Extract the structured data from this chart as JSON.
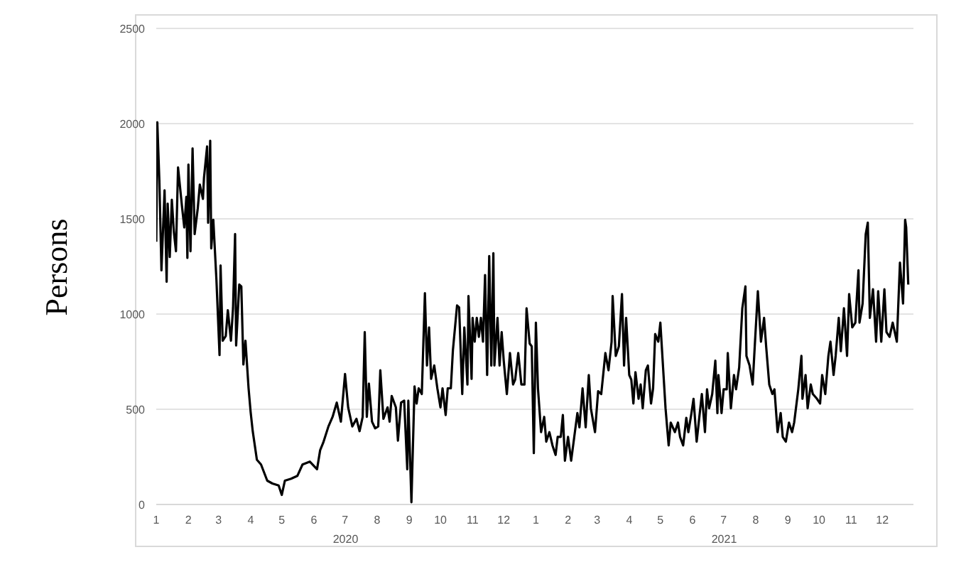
{
  "chart_data": {
    "type": "line",
    "ylabel": "Persons",
    "xlim": [
      "2020-01-01",
      "2021-12-31"
    ],
    "ylim": [
      0,
      2500
    ],
    "yticks": [
      0,
      500,
      1000,
      1500,
      2000,
      2500
    ],
    "xticks": [
      {
        "value": "2020-01-01",
        "label": "1"
      },
      {
        "value": "2020-02-01",
        "label": "2"
      },
      {
        "value": "2020-03-01",
        "label": "3"
      },
      {
        "value": "2020-04-01",
        "label": "4"
      },
      {
        "value": "2020-05-01",
        "label": "5"
      },
      {
        "value": "2020-06-01",
        "label": "6"
      },
      {
        "value": "2020-07-01",
        "label": "7"
      },
      {
        "value": "2020-08-01",
        "label": "8"
      },
      {
        "value": "2020-09-01",
        "label": "9"
      },
      {
        "value": "2020-10-01",
        "label": "10"
      },
      {
        "value": "2020-11-01",
        "label": "11"
      },
      {
        "value": "2020-12-01",
        "label": "12"
      },
      {
        "value": "2021-01-01",
        "label": "1"
      },
      {
        "value": "2021-02-01",
        "label": "2"
      },
      {
        "value": "2021-03-01",
        "label": "3"
      },
      {
        "value": "2021-04-01",
        "label": "4"
      },
      {
        "value": "2021-05-01",
        "label": "5"
      },
      {
        "value": "2021-06-01",
        "label": "6"
      },
      {
        "value": "2021-07-01",
        "label": "7"
      },
      {
        "value": "2021-08-01",
        "label": "8"
      },
      {
        "value": "2021-09-01",
        "label": "9"
      },
      {
        "value": "2021-10-01",
        "label": "10"
      },
      {
        "value": "2021-11-01",
        "label": "11"
      },
      {
        "value": "2021-12-01",
        "label": "12"
      }
    ],
    "annotations": [
      "2020",
      "2021"
    ],
    "grid": "y",
    "legend": false,
    "marker": "none",
    "line_style": "solid",
    "x": [
      "2020-01-01",
      "2020-01-02",
      "2020-01-04",
      "2020-01-06",
      "2020-01-09",
      "2020-01-11",
      "2020-01-12",
      "2020-01-14",
      "2020-01-16",
      "2020-01-18",
      "2020-01-20",
      "2020-01-22",
      "2020-01-26",
      "2020-01-28",
      "2020-01-30",
      "2020-01-31",
      "2020-02-01",
      "2020-02-03",
      "2020-02-05",
      "2020-02-07",
      "2020-02-10",
      "2020-02-12",
      "2020-02-15",
      "2020-02-16",
      "2020-02-19",
      "2020-02-20",
      "2020-02-22",
      "2020-02-23",
      "2020-02-25",
      "2020-02-28",
      "2020-03-02",
      "2020-03-03",
      "2020-03-05",
      "2020-03-08",
      "2020-03-10",
      "2020-03-13",
      "2020-03-15",
      "2020-03-17",
      "2020-03-18",
      "2020-03-21",
      "2020-03-23",
      "2020-03-25",
      "2020-03-27",
      "2020-03-30",
      "2020-04-01",
      "2020-04-03",
      "2020-04-07",
      "2020-04-11",
      "2020-04-17",
      "2020-04-22",
      "2020-04-28",
      "2020-05-01",
      "2020-05-04",
      "2020-05-10",
      "2020-05-16",
      "2020-05-21",
      "2020-05-28",
      "2020-06-04",
      "2020-06-07",
      "2020-06-10",
      "2020-06-15",
      "2020-06-19",
      "2020-06-23",
      "2020-06-27",
      "2020-07-01",
      "2020-07-04",
      "2020-07-08",
      "2020-07-12",
      "2020-07-15",
      "2020-07-18",
      "2020-07-20",
      "2020-07-22",
      "2020-07-24",
      "2020-07-27",
      "2020-07-30",
      "2020-08-02",
      "2020-08-04",
      "2020-08-07",
      "2020-08-11",
      "2020-08-13",
      "2020-08-15",
      "2020-08-19",
      "2020-08-21",
      "2020-08-24",
      "2020-08-27",
      "2020-08-30",
      "2020-08-31",
      "2020-09-03",
      "2020-09-06",
      "2020-09-08",
      "2020-09-10",
      "2020-09-13",
      "2020-09-16",
      "2020-09-18",
      "2020-09-20",
      "2020-09-22",
      "2020-09-25",
      "2020-09-28",
      "2020-10-01",
      "2020-10-03",
      "2020-10-06",
      "2020-10-08",
      "2020-10-11",
      "2020-10-13",
      "2020-10-17",
      "2020-10-19",
      "2020-10-22",
      "2020-10-24",
      "2020-10-27",
      "2020-10-28",
      "2020-10-31",
      "2020-11-01",
      "2020-11-03",
      "2020-11-05",
      "2020-11-07",
      "2020-11-09",
      "2020-11-11",
      "2020-11-13",
      "2020-11-15",
      "2020-11-17",
      "2020-11-19",
      "2020-11-21",
      "2020-11-22",
      "2020-11-25",
      "2020-11-27",
      "2020-11-29",
      "2020-12-01",
      "2020-12-04",
      "2020-12-07",
      "2020-12-10",
      "2020-12-12",
      "2020-12-15",
      "2020-12-18",
      "2020-12-21",
      "2020-12-23",
      "2020-12-26",
      "2020-12-28",
      "2020-12-30",
      "2021-01-01",
      "2021-01-03",
      "2021-01-06",
      "2021-01-09",
      "2021-01-11",
      "2021-01-14",
      "2021-01-17",
      "2021-01-20",
      "2021-01-22",
      "2021-01-25",
      "2021-01-27",
      "2021-01-29",
      "2021-02-01",
      "2021-02-04",
      "2021-02-07",
      "2021-02-10",
      "2021-02-12",
      "2021-02-15",
      "2021-02-18",
      "2021-02-21",
      "2021-02-23",
      "2021-02-27",
      "2021-03-02",
      "2021-03-05",
      "2021-03-09",
      "2021-03-12",
      "2021-03-15",
      "2021-03-16",
      "2021-03-19",
      "2021-03-22",
      "2021-03-25",
      "2021-03-27",
      "2021-03-29",
      "2021-04-01",
      "2021-04-03",
      "2021-04-05",
      "2021-04-07",
      "2021-04-10",
      "2021-04-12",
      "2021-04-14",
      "2021-04-17",
      "2021-04-19",
      "2021-04-22",
      "2021-04-24",
      "2021-04-26",
      "2021-04-29",
      "2021-05-01",
      "2021-05-06",
      "2021-05-09",
      "2021-05-11",
      "2021-05-15",
      "2021-05-18",
      "2021-05-20",
      "2021-05-23",
      "2021-05-26",
      "2021-05-28",
      "2021-05-31",
      "2021-06-02",
      "2021-06-05",
      "2021-06-07",
      "2021-06-10",
      "2021-06-13",
      "2021-06-15",
      "2021-06-17",
      "2021-06-20",
      "2021-06-23",
      "2021-06-25",
      "2021-06-26",
      "2021-06-29",
      "2021-07-01",
      "2021-07-04",
      "2021-07-05",
      "2021-07-08",
      "2021-07-11",
      "2021-07-13",
      "2021-07-16",
      "2021-07-19",
      "2021-07-22",
      "2021-07-23",
      "2021-07-26",
      "2021-07-29",
      "2021-07-31",
      "2021-08-03",
      "2021-08-06",
      "2021-08-09",
      "2021-08-11",
      "2021-08-14",
      "2021-08-17",
      "2021-08-19",
      "2021-08-22",
      "2021-08-25",
      "2021-08-27",
      "2021-08-30",
      "2021-09-02",
      "2021-09-05",
      "2021-09-07",
      "2021-09-11",
      "2021-09-14",
      "2021-09-15",
      "2021-09-18",
      "2021-09-20",
      "2021-09-23",
      "2021-09-25",
      "2021-09-29",
      "2021-10-02",
      "2021-10-04",
      "2021-10-07",
      "2021-10-10",
      "2021-10-12",
      "2021-10-15",
      "2021-10-17",
      "2021-10-20",
      "2021-10-22",
      "2021-10-25",
      "2021-10-28",
      "2021-10-30",
      "2021-11-02",
      "2021-11-05",
      "2021-11-08",
      "2021-11-09",
      "2021-11-12",
      "2021-11-15",
      "2021-11-17",
      "2021-11-19",
      "2021-11-22",
      "2021-11-25",
      "2021-11-27",
      "2021-11-30",
      "2021-12-03",
      "2021-12-05",
      "2021-12-08",
      "2021-12-11",
      "2021-12-14",
      "2021-12-15",
      "2021-12-18",
      "2021-12-21",
      "2021-12-23",
      "2021-12-24",
      "2021-12-26"
    ],
    "series": [
      {
        "color": "#000000",
        "values": [
          1380,
          2007,
          1700,
          1230,
          1650,
          1170,
          1580,
          1300,
          1600,
          1430,
          1330,
          1770,
          1555,
          1455,
          1615,
          1295,
          1785,
          1330,
          1870,
          1420,
          1555,
          1680,
          1605,
          1715,
          1880,
          1480,
          1910,
          1345,
          1495,
          1180,
          785,
          1255,
          860,
          885,
          1020,
          860,
          1030,
          1420,
          835,
          1155,
          1145,
          735,
          860,
          610,
          485,
          385,
          235,
          210,
          125,
          110,
          100,
          50,
          125,
          135,
          150,
          210,
          225,
          185,
          285,
          325,
          410,
          460,
          535,
          435,
          685,
          510,
          410,
          450,
          385,
          460,
          905,
          460,
          635,
          435,
          400,
          410,
          705,
          450,
          510,
          435,
          570,
          510,
          335,
          535,
          545,
          185,
          545,
          12,
          620,
          530,
          610,
          580,
          1110,
          730,
          930,
          660,
          730,
          610,
          510,
          610,
          470,
          610,
          610,
          810,
          1045,
          1035,
          580,
          930,
          630,
          1095,
          660,
          980,
          855,
          980,
          880,
          980,
          855,
          1205,
          680,
          1305,
          730,
          1320,
          730,
          980,
          730,
          905,
          755,
          580,
          795,
          630,
          655,
          795,
          630,
          630,
          1030,
          845,
          830,
          270,
          955,
          610,
          380,
          460,
          330,
          380,
          310,
          260,
          355,
          355,
          470,
          230,
          355,
          230,
          355,
          480,
          405,
          610,
          405,
          680,
          505,
          380,
          595,
          580,
          795,
          705,
          855,
          1095,
          780,
          830,
          1105,
          730,
          980,
          680,
          655,
          530,
          695,
          555,
          630,
          505,
          705,
          730,
          530,
          610,
          895,
          855,
          955,
          505,
          310,
          430,
          380,
          430,
          355,
          310,
          455,
          380,
          480,
          555,
          330,
          430,
          580,
          380,
          605,
          505,
          580,
          755,
          480,
          680,
          480,
          605,
          605,
          795,
          505,
          680,
          605,
          720,
          1030,
          1145,
          780,
          730,
          630,
          830,
          1120,
          855,
          980,
          830,
          630,
          580,
          605,
          380,
          480,
          355,
          330,
          430,
          380,
          430,
          605,
          780,
          555,
          680,
          505,
          630,
          580,
          555,
          530,
          680,
          580,
          780,
          855,
          680,
          780,
          980,
          805,
          1030,
          780,
          1105,
          930,
          955,
          1230,
          955,
          1055,
          1420,
          1480,
          980,
          1130,
          855,
          1120,
          855,
          1130,
          905,
          880,
          955,
          880,
          855,
          1270,
          1055,
          1495,
          1455,
          1155
        ]
      }
    ]
  }
}
